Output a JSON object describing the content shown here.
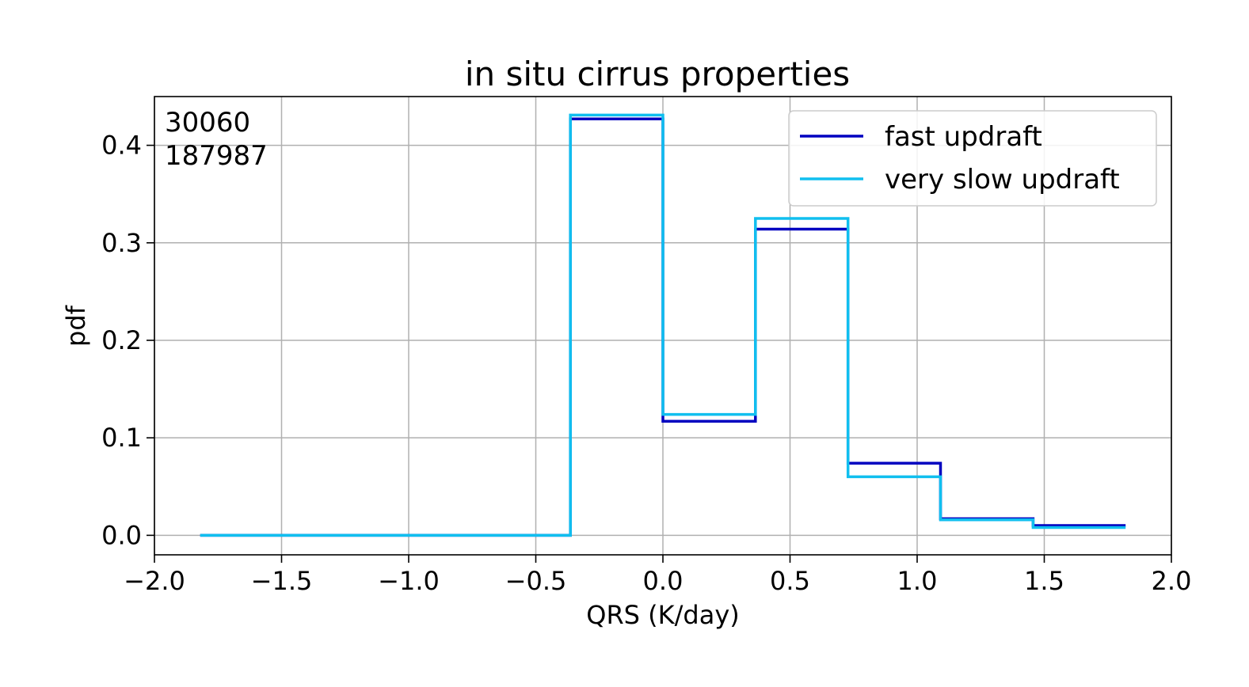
{
  "chart_data": {
    "type": "line",
    "drawstyle": "steps",
    "title": "in situ cirrus properties",
    "xlabel": "QRS (K/day)",
    "ylabel": "pdf",
    "xlim": [
      -2.0,
      2.0
    ],
    "ylim": [
      -0.02,
      0.45
    ],
    "grid": true,
    "legend_position": "top-right",
    "xticks": [
      -2.0,
      -1.5,
      -1.0,
      -0.5,
      0.0,
      0.5,
      1.0,
      1.5,
      2.0
    ],
    "xtick_labels": [
      "−2.0",
      "−1.5",
      "−1.0",
      "−0.5",
      "0.0",
      "0.5",
      "1.0",
      "1.5",
      "2.0"
    ],
    "yticks": [
      0.0,
      0.1,
      0.2,
      0.3,
      0.4
    ],
    "ytick_labels": [
      "0.0",
      "0.1",
      "0.2",
      "0.3",
      "0.4"
    ],
    "annotations": [
      "30060",
      "187987"
    ],
    "bin_edges": [
      -1.82,
      -1.456,
      -1.092,
      -0.728,
      -0.364,
      0.0,
      0.364,
      0.728,
      1.092,
      1.456,
      1.82
    ],
    "series": [
      {
        "name": "fast updraft",
        "color": "#0000c0",
        "values": [
          0.0,
          0.0,
          0.0,
          0.0,
          0.427,
          0.117,
          0.314,
          0.074,
          0.017,
          0.01
        ]
      },
      {
        "name": "very slow updraft",
        "color": "#10bfef",
        "values": [
          0.0,
          0.0,
          0.0,
          0.0,
          0.431,
          0.124,
          0.325,
          0.06,
          0.016,
          0.008
        ]
      }
    ]
  }
}
